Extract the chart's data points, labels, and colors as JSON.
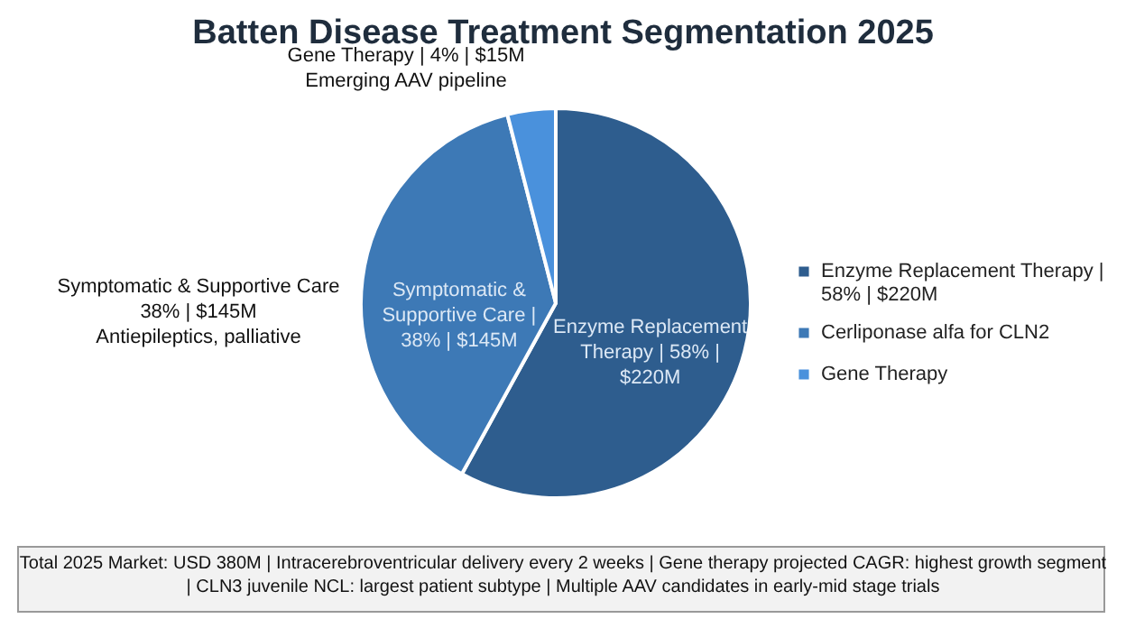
{
  "chart_data": {
    "type": "pie",
    "title": "Batten Disease Treatment Segmentation 2025",
    "categories": [
      "Enzyme Replacement Therapy | 58% | $220M",
      "Cerliponase alfa for CLN2",
      "Gene Therapy"
    ],
    "values": [
      58,
      38,
      4
    ],
    "colors": [
      "#2e5d8e",
      "#3d79b6",
      "#4a91dc"
    ],
    "value_labels": [
      "Enzyme Replacement Therapy | 58% | $220M",
      "Symptomatic & Supportive Care | 38% | $145M",
      null
    ],
    "annotations": [
      "Gene Therapy | 4% | $15M\nEmerging AAV pipeline",
      "Symptomatic & Supportive Care\n38% | $145M\nAntiepileptics, palliative",
      "Total 2025 Market: USD 380M | Intracerebroventricular delivery every 2 weeks | Gene therapy projected CAGR: highest growth segment\n| CLN3 juvenile NCL: largest patient subtype | Multiple AAV candidates in early-mid stage trials"
    ],
    "legend": "right"
  }
}
